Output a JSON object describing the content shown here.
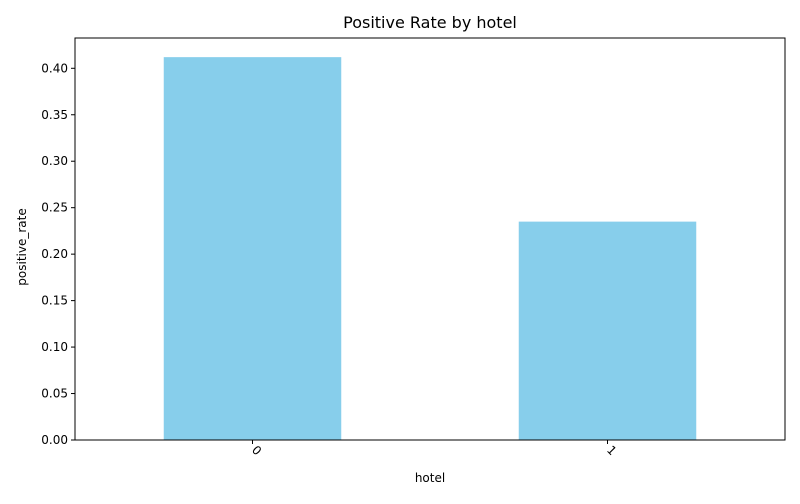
{
  "chart_data": {
    "type": "bar",
    "title": "Positive Rate by hotel",
    "xlabel": "hotel",
    "ylabel": "positive_rate",
    "categories": [
      "0",
      "1"
    ],
    "values": [
      0.412,
      0.235
    ],
    "ylim": [
      0,
      0.4326
    ],
    "yticks": [
      "0.00",
      "0.05",
      "0.10",
      "0.15",
      "0.20",
      "0.25",
      "0.30",
      "0.35",
      "0.40"
    ],
    "bar_color": "#87CEEB",
    "grid": false,
    "legend": "none",
    "x_tick_rotation": 45
  }
}
